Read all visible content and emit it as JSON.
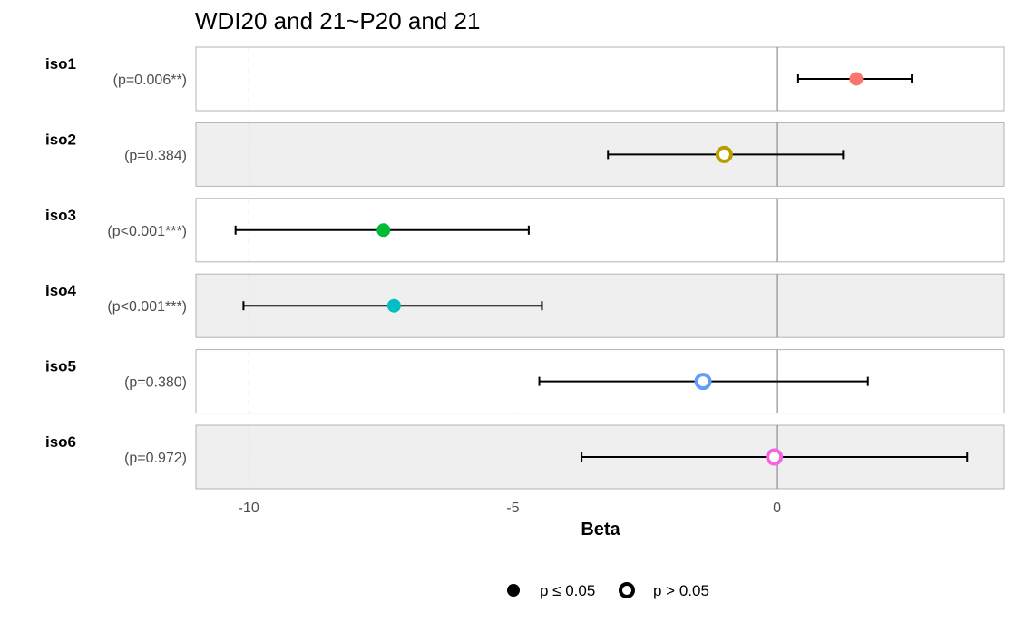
{
  "chart_data": {
    "type": "forest",
    "title": "WDI20 and 21~P20 and 21",
    "xlabel": "Beta",
    "xlim": [
      -11,
      4.3
    ],
    "xticks": [
      -10,
      -5,
      0
    ],
    "xtick_labels": [
      "-10",
      "-5",
      "0"
    ],
    "reference_line": 0,
    "rows": [
      {
        "label": "iso1",
        "p_text": "(p=0.006**)",
        "beta": 1.5,
        "lower": 0.4,
        "upper": 2.55,
        "significant": true,
        "color": "#F8766D"
      },
      {
        "label": "iso2",
        "p_text": "(p=0.384)",
        "beta": -1.0,
        "lower": -3.2,
        "upper": 1.25,
        "significant": false,
        "color": "#B79F00"
      },
      {
        "label": "iso3",
        "p_text": "(p<0.001***)",
        "beta": -7.45,
        "lower": -10.25,
        "upper": -4.7,
        "significant": true,
        "color": "#00BA38"
      },
      {
        "label": "iso4",
        "p_text": "(p<0.001***)",
        "beta": -7.25,
        "lower": -10.1,
        "upper": -4.45,
        "significant": true,
        "color": "#00BFC4"
      },
      {
        "label": "iso5",
        "p_text": "(p=0.380)",
        "beta": -1.4,
        "lower": -4.5,
        "upper": 1.72,
        "significant": false,
        "color": "#619CFF"
      },
      {
        "label": "iso6",
        "p_text": "(p=0.972)",
        "beta": -0.05,
        "lower": -3.7,
        "upper": 3.6,
        "significant": false,
        "color": "#F564E3"
      }
    ],
    "legend": {
      "position": "bottom",
      "items": [
        {
          "label": "p ≤ 0.05",
          "shape": "filled-circle"
        },
        {
          "label": "p > 0.05",
          "shape": "open-circle"
        }
      ]
    }
  }
}
